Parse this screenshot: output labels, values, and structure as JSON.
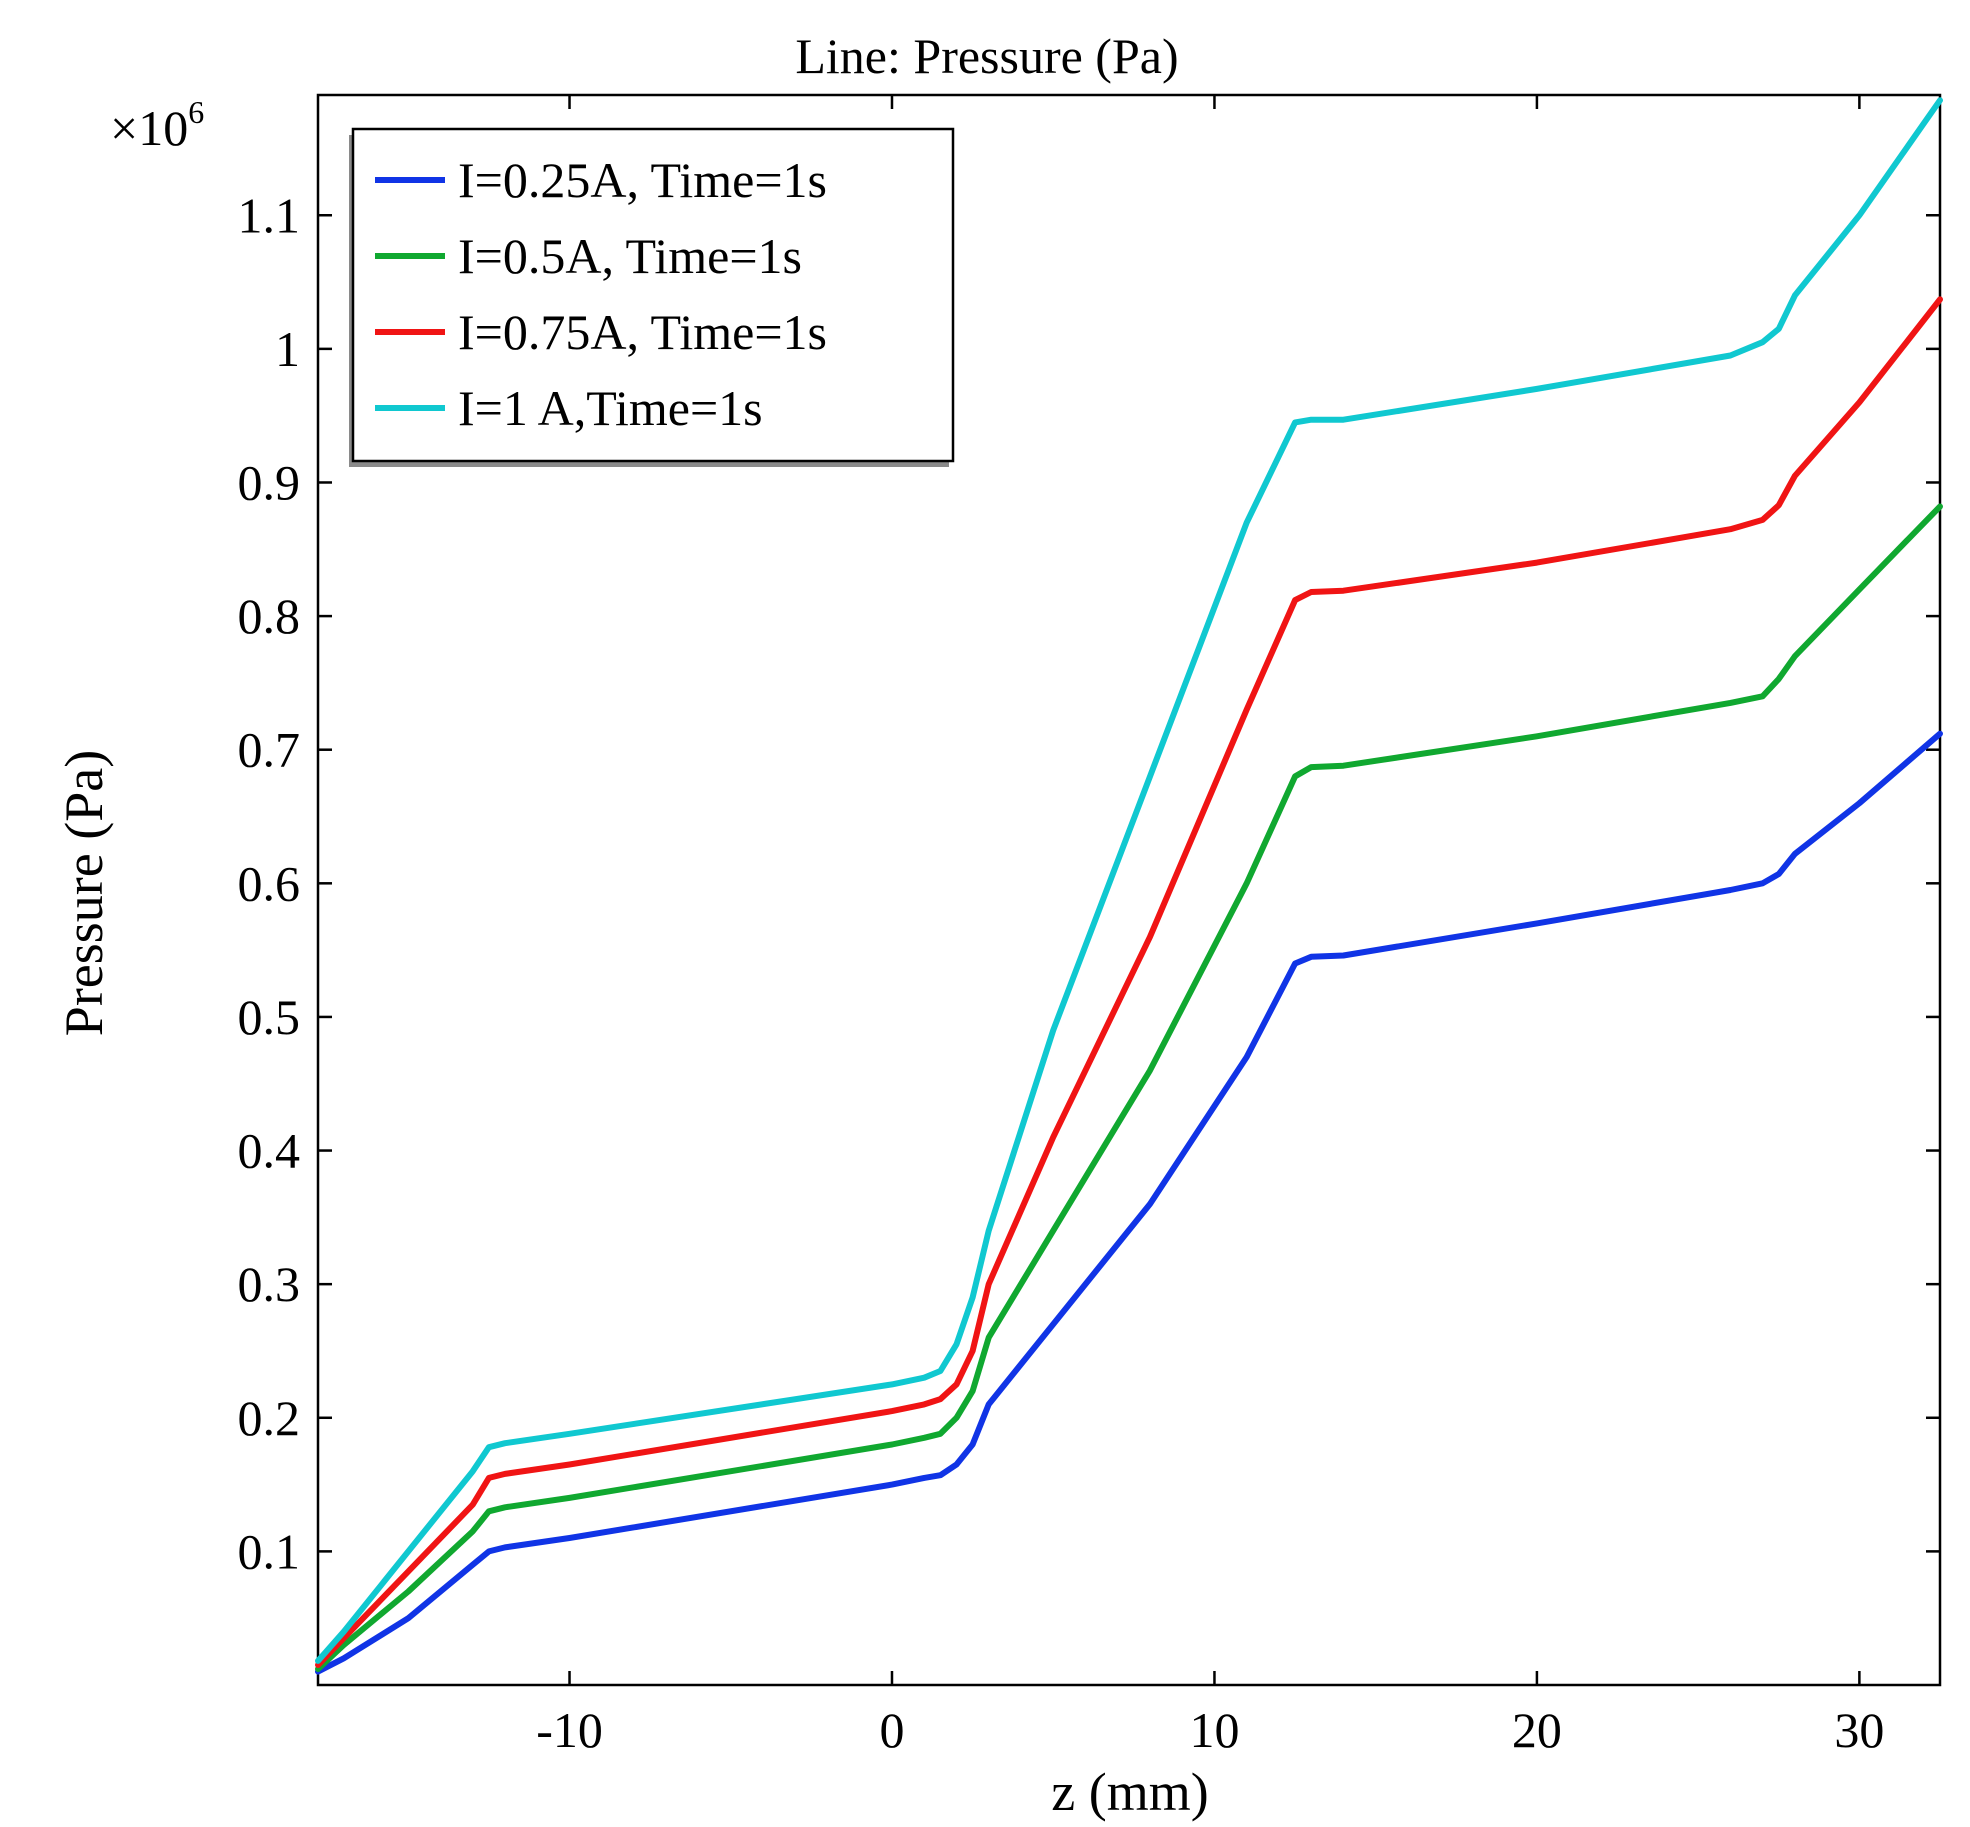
{
  "chart_data": {
    "type": "line",
    "title": "Line: Pressure (Pa)",
    "xlabel": "z (mm)",
    "ylabel": "Pressure (Pa)",
    "y_multiplier": "×10",
    "y_multiplier_exp": "6",
    "xlim": [
      -17.8,
      32.5
    ],
    "ylim": [
      0.0,
      1.19
    ],
    "xticks": [
      -10,
      0,
      10,
      20,
      30
    ],
    "yticks": [
      0.1,
      0.2,
      0.3,
      0.4,
      0.5,
      0.6,
      0.7,
      0.8,
      0.9,
      1.0,
      1.1
    ],
    "xtick_labels": [
      "-10",
      "0",
      "10",
      "20",
      "30"
    ],
    "ytick_labels": [
      "0.1",
      "0.2",
      "0.3",
      "0.4",
      "0.5",
      "0.6",
      "0.7",
      "0.8",
      "0.9",
      "1",
      "1.1"
    ],
    "grid": false,
    "legend_position": "top-left",
    "series": [
      {
        "name": "I=0.25A, Time=1s",
        "color": "#1034e6",
        "points": [
          [
            -17.8,
            0.01
          ],
          [
            -17,
            0.02
          ],
          [
            -15,
            0.05
          ],
          [
            -13,
            0.09
          ],
          [
            -12.5,
            0.1
          ],
          [
            -12,
            0.103
          ],
          [
            -10,
            0.11
          ],
          [
            0,
            0.15
          ],
          [
            1,
            0.155
          ],
          [
            1.5,
            0.157
          ],
          [
            2,
            0.165
          ],
          [
            2.5,
            0.18
          ],
          [
            3,
            0.21
          ],
          [
            5,
            0.27
          ],
          [
            8,
            0.36
          ],
          [
            11,
            0.47
          ],
          [
            12.5,
            0.54
          ],
          [
            13,
            0.545
          ],
          [
            14,
            0.546
          ],
          [
            20,
            0.57
          ],
          [
            26,
            0.595
          ],
          [
            27,
            0.6
          ],
          [
            27.5,
            0.607
          ],
          [
            28,
            0.622
          ],
          [
            30,
            0.66
          ],
          [
            32.5,
            0.712
          ]
        ]
      },
      {
        "name": "I=0.5A, Time=1s",
        "color": "#10a830",
        "points": [
          [
            -17.8,
            0.012
          ],
          [
            -17,
            0.03
          ],
          [
            -15,
            0.07
          ],
          [
            -13,
            0.115
          ],
          [
            -12.5,
            0.13
          ],
          [
            -12,
            0.133
          ],
          [
            -10,
            0.14
          ],
          [
            0,
            0.18
          ],
          [
            1,
            0.185
          ],
          [
            1.5,
            0.188
          ],
          [
            2,
            0.2
          ],
          [
            2.5,
            0.22
          ],
          [
            3,
            0.26
          ],
          [
            5,
            0.34
          ],
          [
            8,
            0.46
          ],
          [
            11,
            0.6
          ],
          [
            12.5,
            0.68
          ],
          [
            13,
            0.687
          ],
          [
            14,
            0.688
          ],
          [
            20,
            0.71
          ],
          [
            26,
            0.735
          ],
          [
            27,
            0.74
          ],
          [
            27.5,
            0.753
          ],
          [
            28,
            0.77
          ],
          [
            30,
            0.82
          ],
          [
            32.5,
            0.882
          ]
        ]
      },
      {
        "name": "I=0.75A, Time=1s",
        "color": "#f01414",
        "points": [
          [
            -17.8,
            0.015
          ],
          [
            -17,
            0.035
          ],
          [
            -15,
            0.085
          ],
          [
            -13,
            0.135
          ],
          [
            -12.5,
            0.155
          ],
          [
            -12,
            0.158
          ],
          [
            -10,
            0.165
          ],
          [
            0,
            0.205
          ],
          [
            1,
            0.21
          ],
          [
            1.5,
            0.214
          ],
          [
            2,
            0.225
          ],
          [
            2.5,
            0.25
          ],
          [
            3,
            0.3
          ],
          [
            5,
            0.41
          ],
          [
            8,
            0.56
          ],
          [
            11,
            0.73
          ],
          [
            12.5,
            0.812
          ],
          [
            13,
            0.818
          ],
          [
            14,
            0.819
          ],
          [
            20,
            0.84
          ],
          [
            26,
            0.865
          ],
          [
            27,
            0.872
          ],
          [
            27.5,
            0.883
          ],
          [
            28,
            0.905
          ],
          [
            30,
            0.96
          ],
          [
            32.5,
            1.037
          ]
        ]
      },
      {
        "name": "I=1 A,Time=1s",
        "color": "#10c8d0",
        "points": [
          [
            -17.8,
            0.018
          ],
          [
            -17,
            0.04
          ],
          [
            -15,
            0.1
          ],
          [
            -13,
            0.16
          ],
          [
            -12.5,
            0.178
          ],
          [
            -12,
            0.181
          ],
          [
            -10,
            0.188
          ],
          [
            0,
            0.225
          ],
          [
            1,
            0.23
          ],
          [
            1.5,
            0.235
          ],
          [
            2,
            0.255
          ],
          [
            2.5,
            0.29
          ],
          [
            3,
            0.34
          ],
          [
            5,
            0.49
          ],
          [
            8,
            0.68
          ],
          [
            11,
            0.87
          ],
          [
            12.5,
            0.945
          ],
          [
            13,
            0.947
          ],
          [
            14,
            0.947
          ],
          [
            20,
            0.97
          ],
          [
            26,
            0.995
          ],
          [
            27,
            1.005
          ],
          [
            27.5,
            1.015
          ],
          [
            28,
            1.04
          ],
          [
            30,
            1.1
          ],
          [
            32.5,
            1.186
          ]
        ]
      }
    ]
  }
}
